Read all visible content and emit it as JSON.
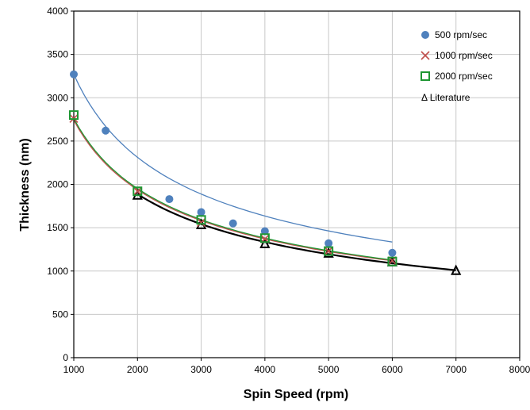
{
  "chart_data": {
    "type": "scatter",
    "title": "",
    "xlabel": "Spin Speed (rpm)",
    "ylabel": "Thickness (nm)",
    "xlim": [
      1000,
      8000
    ],
    "ylim": [
      0,
      4000
    ],
    "x_ticks": [
      "1000",
      "2000",
      "3000",
      "4000",
      "5000",
      "6000",
      "7000",
      "8000"
    ],
    "y_ticks": [
      "0",
      "500",
      "1000",
      "1500",
      "2000",
      "2500",
      "3000",
      "3500",
      "4000"
    ],
    "grid": true,
    "legend_position": "top-right",
    "series": [
      {
        "name": "500 rpm/sec",
        "marker": "circle",
        "color": "#4f81bd",
        "x": [
          1000,
          1500,
          2500,
          3000,
          3500,
          4000,
          5000,
          6000
        ],
        "y": [
          3270,
          2620,
          1830,
          1680,
          1550,
          1460,
          1320,
          1210
        ],
        "fit_a": 3270
      },
      {
        "name": "1000 rpm/sec",
        "marker": "x",
        "color": "#c0504d",
        "x": [
          1000,
          2000,
          3000,
          4000,
          5000,
          6000
        ],
        "y": [
          2760,
          1920,
          1560,
          1370,
          1230,
          1120
        ],
        "fit_a": 2740
      },
      {
        "name": "2000 rpm/sec",
        "marker": "square",
        "color": "#1e9632",
        "x": [
          1000,
          2000,
          3000,
          4000,
          5000,
          6000
        ],
        "y": [
          2800,
          1920,
          1590,
          1380,
          1230,
          1110
        ],
        "fit_a": 2760
      },
      {
        "name": "Literature",
        "marker": "triangle",
        "color": "#000000",
        "x": [
          2000,
          3000,
          4000,
          5000,
          6000,
          7000
        ],
        "y": [
          1870,
          1530,
          1310,
          1200,
          1100,
          1000
        ],
        "fit_a": 2670
      }
    ]
  }
}
